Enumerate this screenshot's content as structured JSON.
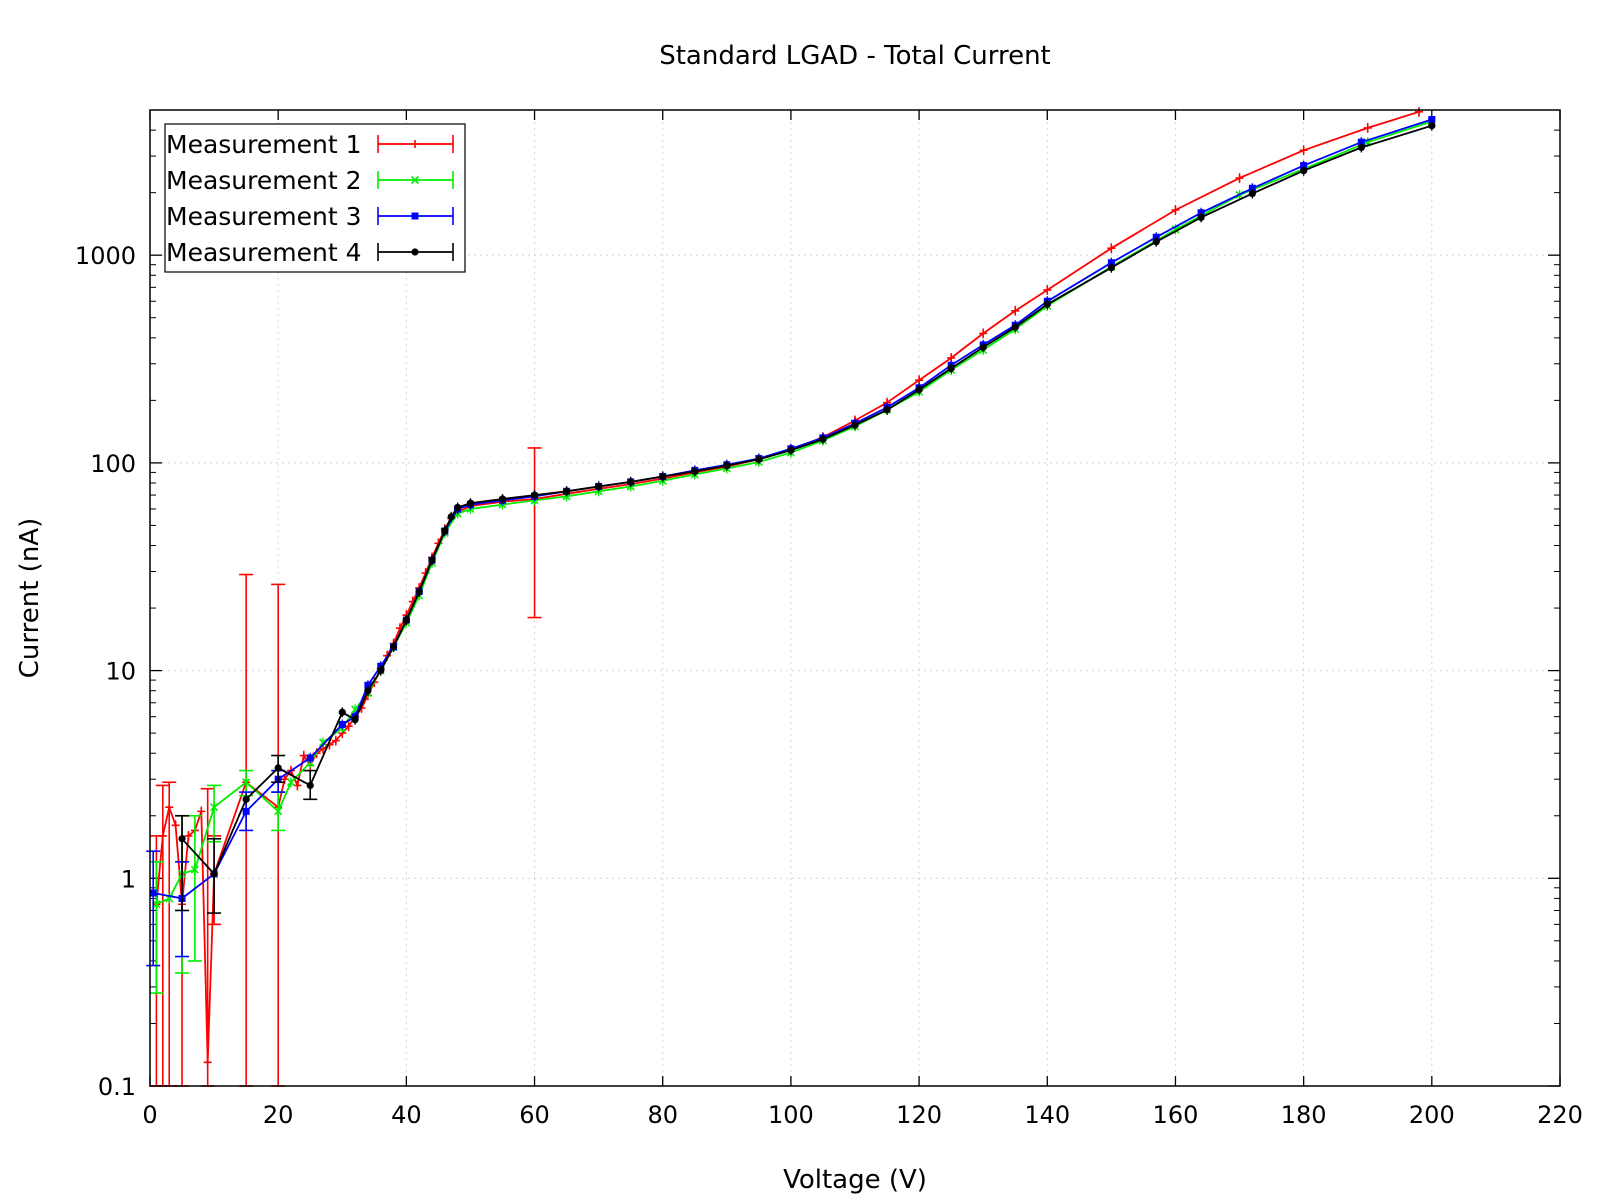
{
  "chart_data": {
    "type": "line",
    "title": "Standard LGAD - Total Current",
    "xlabel": "Voltage (V)",
    "ylabel": "Current (nA)",
    "xlim": [
      0,
      220
    ],
    "ylim": [
      0.1,
      5000
    ],
    "yscale": "log",
    "grid": true,
    "legend_position": "top-left",
    "x_ticks": [
      0,
      20,
      40,
      60,
      80,
      100,
      120,
      140,
      160,
      180,
      200,
      220
    ],
    "x_tick_labels": [
      "0",
      "20",
      "40",
      "60",
      "80",
      "100",
      "120",
      "140",
      "160",
      "180",
      "200",
      "220"
    ],
    "y_ticks": [
      0.1,
      1,
      10,
      100,
      1000
    ],
    "y_tick_labels": [
      "0.1",
      "1",
      "10",
      "100",
      "1000"
    ],
    "series": [
      {
        "name": "Measurement 1",
        "color": "#ff0000",
        "marker": "plus",
        "points": [
          [
            1,
            0.75
          ],
          [
            2,
            1.6
          ],
          [
            3,
            2.2
          ],
          [
            4,
            1.8
          ],
          [
            5,
            0.75
          ],
          [
            6,
            1.6
          ],
          [
            7,
            1.7
          ],
          [
            8,
            2.1
          ],
          [
            9,
            0.13
          ],
          [
            10,
            1.05
          ],
          [
            15,
            2.9
          ],
          [
            20,
            2.2
          ],
          [
            21,
            3.0
          ],
          [
            22,
            3.3
          ],
          [
            23,
            2.8
          ],
          [
            24,
            3.9
          ],
          [
            25,
            3.5
          ],
          [
            26,
            4.0
          ],
          [
            27,
            4.2
          ],
          [
            28,
            4.4
          ],
          [
            29,
            4.6
          ],
          [
            30,
            5.0
          ],
          [
            31,
            5.4
          ],
          [
            32,
            6.0
          ],
          [
            33,
            6.6
          ],
          [
            34,
            7.6
          ],
          [
            35,
            8.8
          ],
          [
            36,
            10.2
          ],
          [
            37,
            11.8
          ],
          [
            38,
            13.5
          ],
          [
            39,
            16.0
          ],
          [
            40,
            18.5
          ],
          [
            41,
            21.5
          ],
          [
            42,
            25.0
          ],
          [
            43,
            29.5
          ],
          [
            44,
            35.0
          ],
          [
            45,
            41.0
          ],
          [
            46,
            48.0
          ],
          [
            47,
            54.0
          ],
          [
            48,
            58.0
          ],
          [
            50,
            62.0
          ],
          [
            55,
            65.0
          ],
          [
            60,
            67.0
          ],
          [
            65,
            71.0
          ],
          [
            70,
            75.0
          ],
          [
            75,
            79.0
          ],
          [
            80,
            84.0
          ],
          [
            85,
            90.0
          ],
          [
            90,
            96.0
          ],
          [
            95,
            104.0
          ],
          [
            100,
            116.0
          ],
          [
            105,
            133.0
          ],
          [
            110,
            160.0
          ],
          [
            115,
            195.0
          ],
          [
            120,
            250.0
          ],
          [
            125,
            320.0
          ],
          [
            130,
            420.0
          ],
          [
            135,
            540.0
          ],
          [
            140,
            680.0
          ],
          [
            150,
            1080.0
          ],
          [
            160,
            1650.0
          ],
          [
            170,
            2350.0
          ],
          [
            180,
            3200.0
          ],
          [
            190,
            4100.0
          ],
          [
            198,
            4900.0
          ]
        ],
        "error_bars": [
          [
            1,
            0.1,
            1.6
          ],
          [
            2,
            0.1,
            2.8
          ],
          [
            3,
            0.1,
            2.9
          ],
          [
            5,
            0.1,
            2.0
          ],
          [
            9,
            0.1,
            2.7
          ],
          [
            10,
            0.6,
            1.6
          ],
          [
            15,
            0.1,
            29.0
          ],
          [
            20,
            0.1,
            26.0
          ],
          [
            60,
            18.0,
            118.0
          ]
        ]
      },
      {
        "name": "Measurement 2",
        "color": "#00ee00",
        "marker": "cross",
        "points": [
          [
            1,
            0.75
          ],
          [
            3,
            0.8
          ],
          [
            5,
            1.05
          ],
          [
            7,
            1.1
          ],
          [
            10,
            2.2
          ],
          [
            15,
            2.9
          ],
          [
            20,
            2.1
          ],
          [
            22,
            2.9
          ],
          [
            25,
            3.6
          ],
          [
            27,
            4.5
          ],
          [
            30,
            5.3
          ],
          [
            32,
            6.5
          ],
          [
            34,
            7.8
          ],
          [
            36,
            10.0
          ],
          [
            38,
            13.0
          ],
          [
            40,
            17.0
          ],
          [
            42,
            23.0
          ],
          [
            44,
            33.0
          ],
          [
            46,
            46.0
          ],
          [
            48,
            57.0
          ],
          [
            50,
            60.0
          ],
          [
            55,
            63.0
          ],
          [
            60,
            66.0
          ],
          [
            65,
            69.0
          ],
          [
            70,
            73.0
          ],
          [
            75,
            77.0
          ],
          [
            80,
            82.0
          ],
          [
            85,
            88.0
          ],
          [
            90,
            94.0
          ],
          [
            95,
            101.0
          ],
          [
            100,
            112.0
          ],
          [
            105,
            128.0
          ],
          [
            110,
            150.0
          ],
          [
            115,
            180.0
          ],
          [
            120,
            220.0
          ],
          [
            125,
            280.0
          ],
          [
            130,
            350.0
          ],
          [
            135,
            440.0
          ],
          [
            140,
            570.0
          ],
          [
            150,
            880.0
          ],
          [
            160,
            1330.0
          ],
          [
            170,
            1950.0
          ],
          [
            180,
            2600.0
          ],
          [
            190,
            3500.0
          ],
          [
            200,
            4400.0
          ]
        ],
        "error_bars": [
          [
            1,
            0.28,
            1.2
          ],
          [
            5,
            0.35,
            2.0
          ],
          [
            7,
            0.4,
            2.0
          ],
          [
            10,
            1.5,
            2.8
          ],
          [
            15,
            2.5,
            3.3
          ],
          [
            20,
            1.7,
            2.6
          ]
        ]
      },
      {
        "name": "Measurement 3",
        "color": "#0000ff",
        "marker": "square",
        "points": [
          [
            0.5,
            0.85
          ],
          [
            5,
            0.8
          ],
          [
            10,
            1.05
          ],
          [
            15,
            2.1
          ],
          [
            20,
            3.0
          ],
          [
            25,
            3.8
          ],
          [
            30,
            5.5
          ],
          [
            32,
            6.0
          ],
          [
            34,
            8.5
          ],
          [
            36,
            10.5
          ],
          [
            38,
            13.0
          ],
          [
            40,
            17.5
          ],
          [
            42,
            24.0
          ],
          [
            44,
            34.0
          ],
          [
            46,
            47.0
          ],
          [
            48,
            60.0
          ],
          [
            50,
            63.0
          ],
          [
            55,
            66.0
          ],
          [
            60,
            69.0
          ],
          [
            65,
            73.0
          ],
          [
            70,
            77.0
          ],
          [
            75,
            81.0
          ],
          [
            80,
            86.0
          ],
          [
            85,
            92.0
          ],
          [
            90,
            98.0
          ],
          [
            95,
            105.0
          ],
          [
            100,
            117.0
          ],
          [
            105,
            132.0
          ],
          [
            110,
            155.0
          ],
          [
            115,
            185.0
          ],
          [
            120,
            230.0
          ],
          [
            125,
            295.0
          ],
          [
            130,
            370.0
          ],
          [
            135,
            460.0
          ],
          [
            140,
            600.0
          ],
          [
            150,
            920.0
          ],
          [
            157,
            1220.0
          ],
          [
            164,
            1600.0
          ],
          [
            172,
            2100.0
          ],
          [
            180,
            2700.0
          ],
          [
            189,
            3500.0
          ],
          [
            200,
            4500.0
          ]
        ],
        "error_bars": [
          [
            0.5,
            0.38,
            1.35
          ],
          [
            5,
            0.42,
            1.2
          ],
          [
            15,
            1.7,
            2.6
          ],
          [
            20,
            2.6,
            3.3
          ]
        ]
      },
      {
        "name": "Measurement 4",
        "color": "#000000",
        "marker": "circle",
        "points": [
          [
            5,
            1.55
          ],
          [
            10,
            1.05
          ],
          [
            15,
            2.4
          ],
          [
            20,
            3.4
          ],
          [
            25,
            2.8
          ],
          [
            30,
            6.3
          ],
          [
            32,
            5.8
          ],
          [
            34,
            8.0
          ],
          [
            36,
            10.0
          ],
          [
            38,
            13.0
          ],
          [
            40,
            17.5
          ],
          [
            42,
            24.0
          ],
          [
            44,
            34.0
          ],
          [
            46,
            47.0
          ],
          [
            47,
            55.0
          ],
          [
            48,
            61.0
          ],
          [
            50,
            64.0
          ],
          [
            55,
            67.0
          ],
          [
            60,
            70.0
          ],
          [
            65,
            73.0
          ],
          [
            70,
            77.0
          ],
          [
            75,
            81.0
          ],
          [
            80,
            86.0
          ],
          [
            85,
            91.0
          ],
          [
            90,
            97.0
          ],
          [
            95,
            104.0
          ],
          [
            100,
            115.0
          ],
          [
            105,
            130.0
          ],
          [
            110,
            152.0
          ],
          [
            115,
            180.0
          ],
          [
            120,
            225.0
          ],
          [
            125,
            285.0
          ],
          [
            130,
            360.0
          ],
          [
            135,
            450.0
          ],
          [
            140,
            580.0
          ],
          [
            150,
            870.0
          ],
          [
            157,
            1160.0
          ],
          [
            164,
            1520.0
          ],
          [
            172,
            1980.0
          ],
          [
            180,
            2550.0
          ],
          [
            189,
            3300.0
          ],
          [
            200,
            4200.0
          ]
        ],
        "error_bars": [
          [
            5,
            0.7,
            2.0
          ],
          [
            10,
            0.68,
            1.55
          ],
          [
            20,
            2.9,
            3.9
          ],
          [
            25,
            2.4,
            3.3
          ]
        ]
      }
    ]
  }
}
